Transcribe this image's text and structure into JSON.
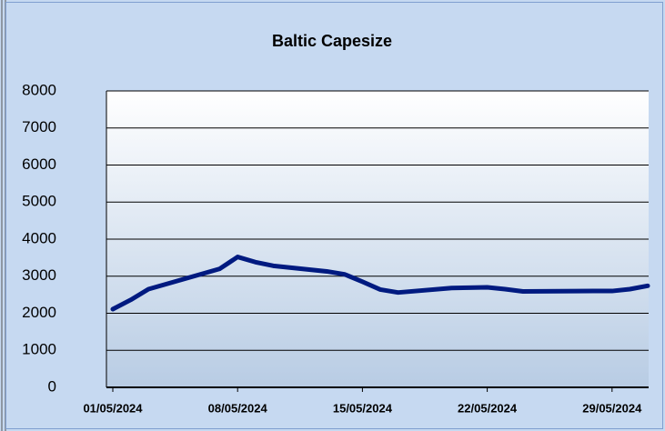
{
  "chart_data": {
    "type": "line",
    "title": "Baltic Capesize",
    "x": [
      "2024-05-01",
      "2024-05-02",
      "2024-05-03",
      "2024-05-07",
      "2024-05-08",
      "2024-05-09",
      "2024-05-10",
      "2024-05-13",
      "2024-05-14",
      "2024-05-15",
      "2024-05-16",
      "2024-05-17",
      "2024-05-20",
      "2024-05-21",
      "2024-05-22",
      "2024-05-23",
      "2024-05-24",
      "2024-05-28",
      "2024-05-29",
      "2024-05-30",
      "2024-05-31"
    ],
    "series": [
      {
        "name": "Baltic Capesize",
        "color": "#001a80",
        "values": [
          2110,
          2360,
          2650,
          3200,
          3520,
          3380,
          3280,
          3130,
          3050,
          2850,
          2640,
          2560,
          2680,
          2690,
          2700,
          2650,
          2590,
          2600,
          2600,
          2650,
          2740
        ]
      }
    ],
    "xlim": [
      "2024-05-01",
      "2024-05-31"
    ],
    "xticks": [
      {
        "value": "2024-05-01",
        "label": "01/05/2024"
      },
      {
        "value": "2024-05-08",
        "label": "08/05/2024"
      },
      {
        "value": "2024-05-15",
        "label": "15/05/2024"
      },
      {
        "value": "2024-05-22",
        "label": "22/05/2024"
      },
      {
        "value": "2024-05-29",
        "label": "29/05/2024"
      }
    ],
    "ylim": [
      0,
      8000
    ],
    "yticks": [
      0,
      1000,
      2000,
      3000,
      4000,
      5000,
      6000,
      7000,
      8000
    ],
    "grid": true
  }
}
